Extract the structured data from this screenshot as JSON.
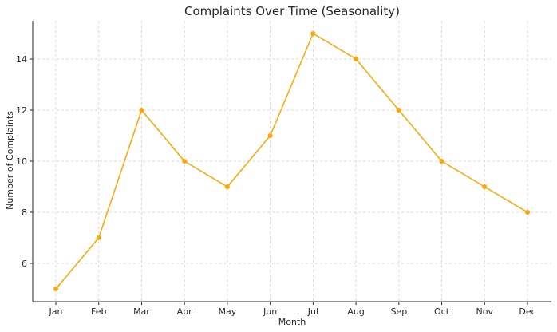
{
  "chart_data": {
    "type": "line",
    "title": "Complaints Over Time (Seasonality)",
    "xlabel": "Month",
    "ylabel": "Number of Complaints",
    "categories": [
      "Jan",
      "Feb",
      "Mar",
      "Apr",
      "May",
      "Jun",
      "Jul",
      "Aug",
      "Sep",
      "Oct",
      "Nov",
      "Dec"
    ],
    "series": [
      {
        "values": [
          5,
          7,
          12,
          10,
          9,
          11,
          15,
          14,
          12,
          10,
          9,
          8
        ],
        "color": "#ffa500"
      }
    ],
    "ylim": [
      4.5,
      15.5
    ],
    "yticks": [
      6,
      8,
      10,
      12,
      14
    ],
    "grid": true
  }
}
